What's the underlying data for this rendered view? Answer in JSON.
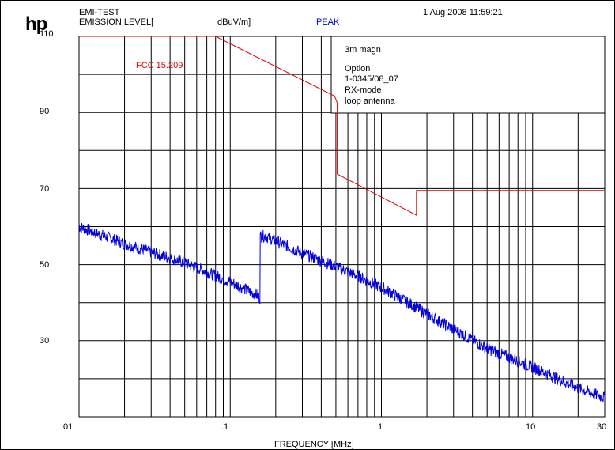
{
  "header": {
    "logo": "hp",
    "test_name": "EMI-TEST",
    "emission_level_label": "EMISSION LEVEL[",
    "unit": "dBuV/m]",
    "detector": "PEAK",
    "timestamp": "1 Aug 2008  11:59:21"
  },
  "legend_box": {
    "lines": [
      "3m magn",
      "Option",
      "1-0345/08_07",
      "RX-mode",
      "loop antenna"
    ]
  },
  "chart_data": {
    "type": "line",
    "xlabel": "FREQUENCY [MHz]",
    "ylabel": "EMISSION LEVEL [dBuV/m]",
    "x_scale": "log",
    "xlim": [
      0.01,
      30
    ],
    "ylim": [
      10,
      110
    ],
    "x_tick_labels": [
      ".01",
      ".1",
      "1",
      "10",
      "30"
    ],
    "x_tick_values": [
      0.01,
      0.1,
      1,
      10,
      30
    ],
    "y_tick_labels": [
      "110",
      "90",
      "70",
      "50",
      "30"
    ],
    "y_tick_values": [
      110,
      90,
      70,
      50,
      30
    ],
    "grid": true,
    "series": [
      {
        "name": "FCC 15.209",
        "color": "#e00000",
        "x": [
          0.01,
          0.08,
          0.49,
          0.49,
          0.51,
          0.51,
          1.705,
          1.705,
          30
        ],
        "y": [
          110,
          110,
          94.3,
          94.3,
          92.5,
          73.8,
          63.0,
          69.5,
          69.5
        ]
      },
      {
        "name": "PEAK",
        "color": "#0000e0",
        "x": [
          0.01,
          0.02,
          0.05,
          0.1,
          0.15,
          0.158,
          0.158,
          0.17,
          0.3,
          0.5,
          0.7,
          1,
          1.5,
          2,
          3,
          5,
          10,
          20,
          30
        ],
        "y": [
          60.0,
          55.5,
          50.5,
          45.5,
          42.0,
          41.0,
          57.5,
          57.5,
          53.0,
          49.5,
          47.0,
          44.0,
          40.0,
          37.0,
          33.0,
          28.0,
          23.0,
          17.5,
          15.0
        ]
      }
    ],
    "annotations": [
      "FCC 15.209"
    ]
  }
}
